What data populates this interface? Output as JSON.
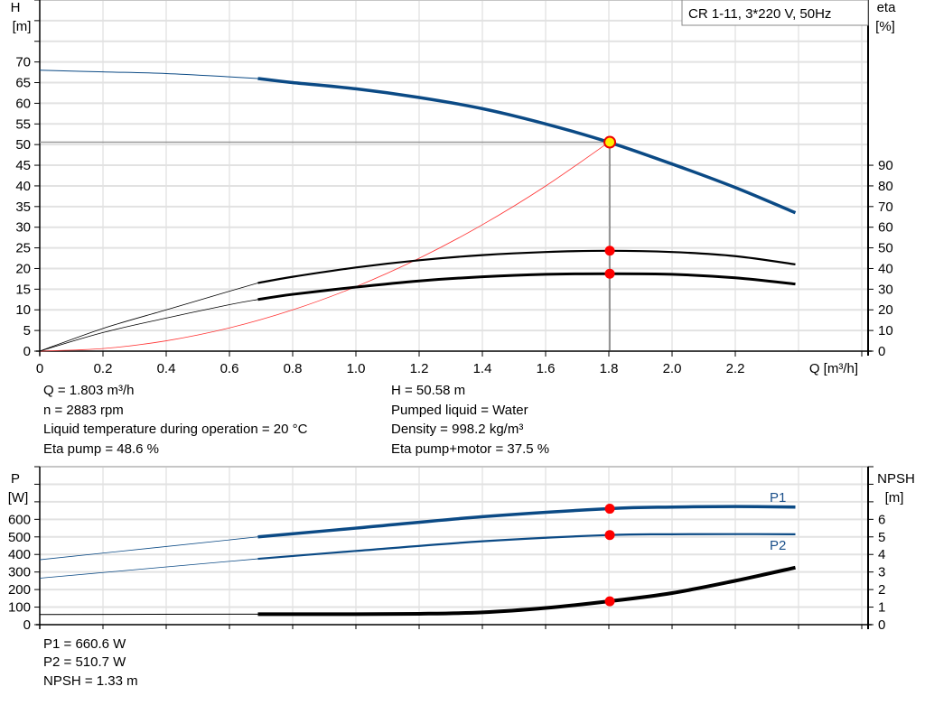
{
  "chart_data": [
    {
      "type": "line",
      "title": "CR 1-11, 3*220 V, 50Hz",
      "xlabel": "Q [m³/h]",
      "ylabel_left": {
        "name": "H",
        "unit": "[m]"
      },
      "ylabel_right": {
        "name": "eta",
        "unit": "[%]"
      },
      "xlim": [
        0,
        2.6
      ],
      "ylim_left": [
        0,
        85
      ],
      "ylim_right": [
        0,
        170
      ],
      "x_ticks": [
        "0",
        "0.2",
        "0.4",
        "0.6",
        "0.8",
        "1.0",
        "1.2",
        "1.4",
        "1.6",
        "1.8",
        "2.0",
        "2.2"
      ],
      "left_ticks": [
        "0",
        "5",
        "10",
        "15",
        "20",
        "25",
        "30",
        "35",
        "40",
        "45",
        "50",
        "55",
        "60",
        "65",
        "70"
      ],
      "right_ticks": [
        "0",
        "10",
        "20",
        "30",
        "40",
        "50",
        "60",
        "70",
        "80",
        "90"
      ],
      "grid": true,
      "operating_range_q": [
        0.69,
        2.39
      ],
      "series": [
        {
          "id": "H",
          "axis": "left",
          "color": "#0b4a85",
          "x": [
            0,
            0.2,
            0.4,
            0.6,
            0.69,
            0.8,
            1.0,
            1.2,
            1.4,
            1.6,
            1.8,
            2.0,
            2.2,
            2.39
          ],
          "y": [
            68,
            67.6,
            67.2,
            66.4,
            66,
            65,
            63.5,
            61.4,
            58.7,
            55,
            50.58,
            45.3,
            39.6,
            33.5
          ]
        },
        {
          "id": "eta-pump",
          "axis": "right",
          "color": "#000000",
          "x": [
            0,
            0.2,
            0.4,
            0.6,
            0.69,
            0.8,
            1.0,
            1.2,
            1.4,
            1.6,
            1.8,
            2.0,
            2.2,
            2.39
          ],
          "y": [
            0,
            11,
            20,
            29,
            33,
            36,
            40.5,
            44,
            46.5,
            48,
            48.6,
            48,
            46,
            42
          ]
        },
        {
          "id": "eta-pump-motor",
          "axis": "right",
          "color": "#000000",
          "x": [
            0,
            0.2,
            0.4,
            0.6,
            0.69,
            0.8,
            1.0,
            1.2,
            1.4,
            1.6,
            1.8,
            2.0,
            2.2,
            2.39
          ],
          "y": [
            0,
            9,
            16,
            22.5,
            25,
            27.5,
            31,
            34,
            36,
            37.2,
            37.5,
            37.2,
            35.5,
            32.5
          ]
        },
        {
          "id": "system-curve",
          "axis": "left",
          "color": "#ff3333",
          "x": [
            0,
            0.2,
            0.4,
            0.6,
            0.8,
            1.0,
            1.2,
            1.4,
            1.6,
            1.8
          ],
          "y": [
            0,
            0.62,
            2.5,
            5.62,
            9.99,
            15.61,
            22.48,
            30.6,
            39.96,
            50.58
          ]
        }
      ],
      "duty_point": {
        "q": 1.803,
        "h": 50.58,
        "eta_pump": 48.6,
        "eta_total": 37.5
      }
    },
    {
      "type": "line",
      "ylabel_left": {
        "name": "P",
        "unit": "[W]"
      },
      "ylabel_right": {
        "name": "NPSH",
        "unit": "[m]"
      },
      "xlim": [
        0,
        2.6
      ],
      "ylim_left": [
        0,
        900
      ],
      "ylim_right": [
        0,
        9
      ],
      "left_ticks": [
        "0",
        "100",
        "200",
        "300",
        "400",
        "500",
        "600"
      ],
      "right_ticks": [
        "0",
        "1",
        "2",
        "3",
        "4",
        "5",
        "6"
      ],
      "grid": true,
      "series": [
        {
          "id": "P1",
          "name": "P1",
          "axis": "left",
          "color": "#0b4a85",
          "x": [
            0,
            0.69,
            1.0,
            1.4,
            1.8,
            2.0,
            2.2,
            2.39
          ],
          "y": [
            370,
            500,
            550,
            615,
            660.6,
            670,
            673,
            670
          ]
        },
        {
          "id": "P2",
          "name": "P2",
          "axis": "left",
          "color": "#0b4a85",
          "x": [
            0,
            0.69,
            1.0,
            1.4,
            1.8,
            2.0,
            2.2,
            2.39
          ],
          "y": [
            265,
            375,
            420,
            475,
            510.7,
            515,
            516,
            515
          ]
        },
        {
          "id": "NPSH",
          "axis": "right",
          "color": "#000000",
          "x": [
            0,
            0.69,
            1.0,
            1.2,
            1.4,
            1.6,
            1.8,
            2.0,
            2.2,
            2.39
          ],
          "y": [
            0.58,
            0.6,
            0.6,
            0.62,
            0.7,
            0.95,
            1.33,
            1.8,
            2.5,
            3.25
          ]
        }
      ]
    }
  ],
  "info_top_left": [
    "Q = 1.803 m³/h",
    "n = 2883 rpm",
    "Liquid temperature during operation = 20 °C",
    "Eta pump = 48.6 %"
  ],
  "info_top_right": [
    "H = 50.58 m",
    "Pumped liquid = Water",
    "Density = 998.2 kg/m³",
    "Eta pump+motor = 37.5 %"
  ],
  "info_bottom": [
    "P1 = 660.6 W",
    "P2 = 510.7 W",
    "NPSH = 1.33 m"
  ]
}
